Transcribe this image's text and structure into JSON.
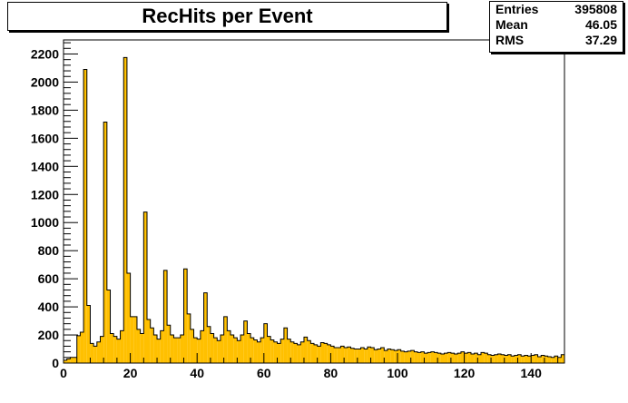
{
  "title": "RecHits per Event",
  "stats": [
    {
      "label": "Entries",
      "value": "395808"
    },
    {
      "label": "Mean",
      "value": "46.05"
    },
    {
      "label": "RMS",
      "value": "37.29"
    }
  ],
  "colors": {
    "fill": "#ffc000",
    "line": "#000000"
  },
  "chart_data": {
    "type": "bar",
    "title": "RecHits per Event",
    "xlim": [
      0,
      150
    ],
    "ylim": [
      0,
      2300
    ],
    "bin_width": 1,
    "x_ticks": [
      0,
      20,
      40,
      60,
      80,
      100,
      120,
      140
    ],
    "y_ticks": [
      0,
      200,
      400,
      600,
      800,
      1000,
      1200,
      1400,
      1600,
      1800,
      2000,
      2200
    ],
    "grid": false,
    "legend": "none",
    "values": [
      20,
      30,
      40,
      40,
      195,
      220,
      2090,
      410,
      140,
      120,
      150,
      190,
      1715,
      520,
      210,
      190,
      170,
      230,
      2175,
      640,
      330,
      330,
      240,
      210,
      1075,
      310,
      250,
      200,
      170,
      230,
      660,
      270,
      200,
      180,
      180,
      200,
      670,
      350,
      240,
      180,
      170,
      230,
      500,
      260,
      210,
      180,
      160,
      200,
      330,
      230,
      200,
      180,
      160,
      200,
      300,
      210,
      180,
      165,
      150,
      180,
      280,
      190,
      165,
      150,
      140,
      170,
      250,
      170,
      150,
      140,
      130,
      150,
      185,
      160,
      140,
      130,
      120,
      145,
      140,
      130,
      120,
      110,
      110,
      120,
      110,
      115,
      105,
      100,
      100,
      110,
      100,
      115,
      110,
      95,
      100,
      110,
      90,
      100,
      95,
      90,
      95,
      85,
      80,
      85,
      90,
      80,
      75,
      80,
      70,
      75,
      80,
      75,
      70,
      65,
      70,
      75,
      70,
      65,
      70,
      80,
      70,
      75,
      65,
      70,
      60,
      75,
      70,
      60,
      55,
      60,
      65,
      60,
      55,
      60,
      50,
      55,
      60,
      50,
      55,
      50,
      55,
      60,
      45,
      55,
      50,
      45,
      40,
      50,
      40,
      60
    ]
  }
}
